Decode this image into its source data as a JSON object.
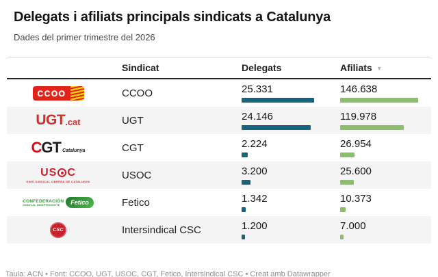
{
  "header": {
    "title": "Delegats i afiliats principals sindicats a Catalunya",
    "subtitle": "Dades del primer trimestre del 2026"
  },
  "table": {
    "columns": {
      "sindicat": "Sindicat",
      "delegats": "Delegats",
      "afiliats": "Afiliats"
    },
    "sort_indicator": "▼",
    "rows": [
      {
        "logo": {
          "type": "ccoo",
          "t1": "CCOO"
        },
        "name": "CCOO",
        "delegats": {
          "label": "25.331",
          "value": 25331
        },
        "afiliats": {
          "label": "146.638",
          "value": 146638
        }
      },
      {
        "logo": {
          "type": "ugt",
          "t1": "UGT",
          "t2": ".cat"
        },
        "name": "UGT",
        "delegats": {
          "label": "24.146",
          "value": 24146
        },
        "afiliats": {
          "label": "119.978",
          "value": 119978
        }
      },
      {
        "logo": {
          "type": "cgt",
          "t1": "C",
          "t2": "GT",
          "t3": "Catalunya"
        },
        "name": "CGT",
        "delegats": {
          "label": "2.224",
          "value": 2224
        },
        "afiliats": {
          "label": "26.954",
          "value": 26954
        }
      },
      {
        "logo": {
          "type": "usoc",
          "t1": "US",
          "t2": "C",
          "t3": "UNIÓ SINDICAL OBRERA DE CATALUNYA"
        },
        "name": "USOC",
        "delegats": {
          "label": "3.200",
          "value": 3200
        },
        "afiliats": {
          "label": "25.600",
          "value": 25600
        }
      },
      {
        "logo": {
          "type": "fetico",
          "t1": "CONFEDERACIÓN",
          "t2": "SINDICAL INDEPENDIENTE",
          "t3": "Fetico"
        },
        "name": "Fetico",
        "delegats": {
          "label": "1.342",
          "value": 1342
        },
        "afiliats": {
          "label": "10.373",
          "value": 10373
        }
      },
      {
        "logo": {
          "type": "csc",
          "t1": "CSC"
        },
        "name": "Intersindical CSC",
        "delegats": {
          "label": "1.200",
          "value": 1200
        },
        "afiliats": {
          "label": "7.000",
          "value": 7000
        }
      }
    ]
  },
  "footer": {
    "credit": "Taula: ACN • Font: CCOO, UGT, USOC, CGT, Fetico, Intersindical CSC • Creat amb Datawrapper"
  },
  "colors": {
    "delegats_bar": "#17647f",
    "afiliats_bar": "#8bbf6b"
  },
  "chart_data": {
    "type": "table",
    "title": "Delegats i afiliats principals sindicats a Catalunya",
    "subtitle": "Dades del primer trimestre del 2026",
    "categories": [
      "CCOO",
      "UGT",
      "CGT",
      "USOC",
      "Fetico",
      "Intersindical CSC"
    ],
    "series": [
      {
        "name": "Delegats",
        "values": [
          25331,
          24146,
          2224,
          3200,
          1342,
          1200
        ]
      },
      {
        "name": "Afiliats",
        "values": [
          146638,
          119978,
          26954,
          25600,
          10373,
          7000
        ]
      }
    ],
    "sorted_by": "Afiliats",
    "sort_order": "descending",
    "bar_colors": {
      "Delegats": "#17647f",
      "Afiliats": "#8bbf6b"
    },
    "bars_scaled_to_column_max": true,
    "notes": "Taula: ACN • Font: CCOO, UGT, USOC, CGT, Fetico, Intersindical CSC • Creat amb Datawrapper"
  }
}
